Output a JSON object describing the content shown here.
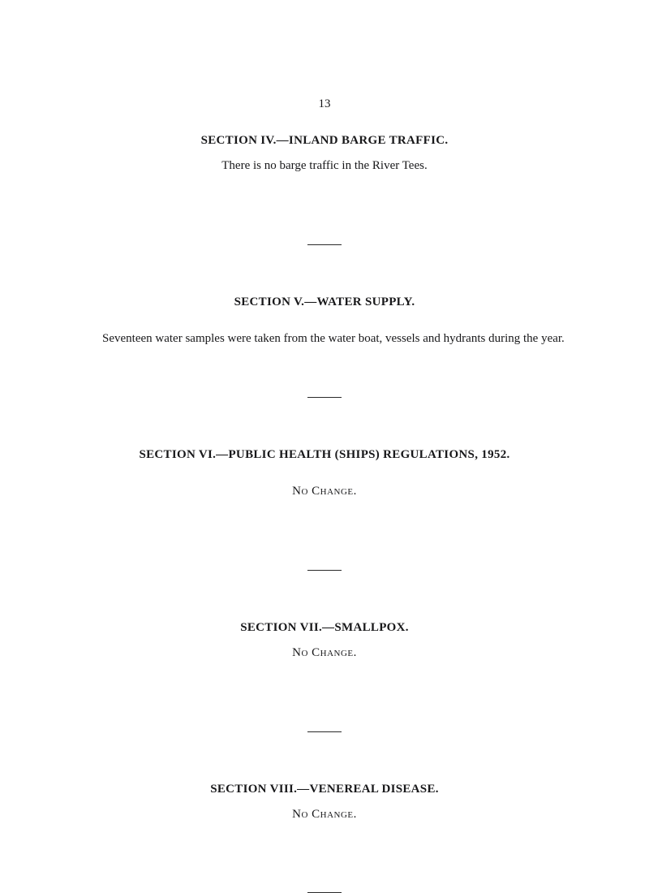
{
  "page_number": "13",
  "sections": [
    {
      "heading": "SECTION IV.—INLAND BARGE TRAFFIC.",
      "body": "There is no barge traffic in the River Tees.",
      "body_align": "center",
      "gap_after_heading": "s",
      "gap_after_body": "xl"
    },
    {
      "heading": "SECTION V.—WATER SUPPLY.",
      "body": "Seventeen water samples were taken from the water boat, vessels and hydrants during the year.",
      "body_align": "left-indent",
      "gap_after_heading": "m",
      "gap_after_body": "xl"
    },
    {
      "heading": "SECTION VI.—PUBLIC HEALTH (SHIPS) REGULATIONS, 1952.",
      "body": "No Change.",
      "body_align": "center-smallcaps",
      "gap_after_heading": "m",
      "gap_after_body": "xl"
    },
    {
      "heading": "SECTION VII.—SMALLPOX.",
      "body": "No Change.",
      "body_align": "center-smallcaps",
      "gap_after_heading": "s",
      "gap_after_body": "xl"
    },
    {
      "heading": "SECTION VIII.—VENEREAL DISEASE.",
      "body": "No Change.",
      "body_align": "center-smallcaps",
      "gap_after_heading": "s",
      "gap_after_body": "xl"
    }
  ]
}
